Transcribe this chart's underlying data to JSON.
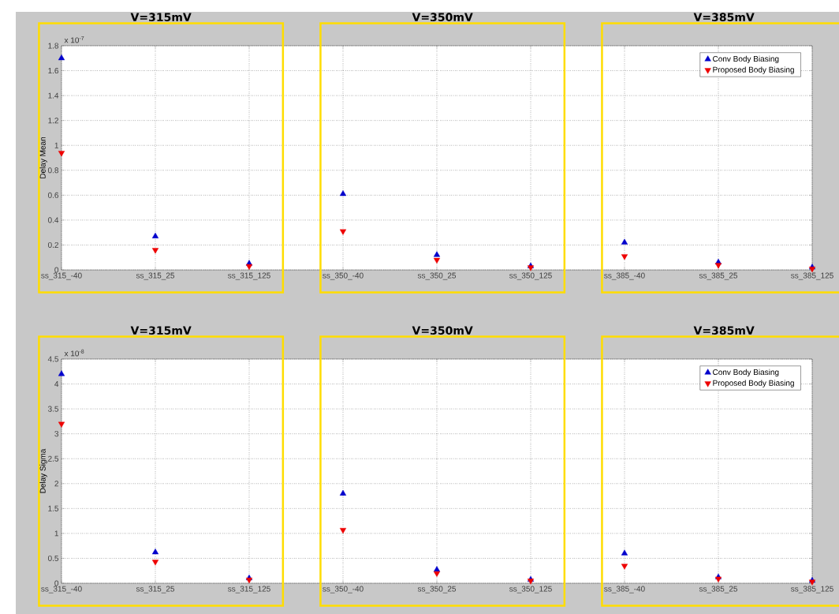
{
  "chart_data": [
    {
      "type": "scatter",
      "ylabel": "Delay Mean",
      "marker": "triangle",
      "grid": true,
      "legend": "top right",
      "categories": [
        "ss_315_-40",
        "ss_315_25",
        "ss_315_125",
        "ss_350_-40",
        "ss_350_25",
        "ss_350_125",
        "ss_385_-40",
        "ss_385_25",
        "ss_385_125"
      ],
      "series": [
        {
          "name": "Conv Body Biasing",
          "color": "#0000cc",
          "values": [
            1.7,
            0.27,
            0.05,
            0.61,
            0.12,
            0.03,
            0.22,
            0.06,
            0.02
          ]
        },
        {
          "name": "Proposed Body Biasing",
          "color": "#ee0000",
          "values": [
            0.94,
            0.16,
            0.03,
            0.31,
            0.08,
            0.02,
            0.11,
            0.04,
            0.01
          ]
        }
      ],
      "ylim": [
        0,
        1.8
      ],
      "yticks": [
        0,
        0.2,
        0.4,
        0.6,
        0.8,
        1,
        1.2,
        1.4,
        1.6,
        1.8
      ],
      "annotations": [
        "x 10$^{-7}$",
        "V=315mV",
        "V=350mV",
        "V=385mV"
      ]
    },
    {
      "type": "scatter",
      "ylabel": "Delay Sigma",
      "marker": "triangle",
      "grid": true,
      "legend": "top right",
      "categories": [
        "ss_315_-40",
        "ss_315_25",
        "ss_315_125",
        "ss_350_-40",
        "ss_350_25",
        "ss_350_125",
        "ss_385_-40",
        "ss_385_25",
        "ss_385_125"
      ],
      "series": [
        {
          "name": "Conv Body Biasing",
          "color": "#0000cc",
          "values": [
            4.2,
            0.62,
            0.1,
            1.8,
            0.27,
            0.07,
            0.6,
            0.12,
            0.05
          ]
        },
        {
          "name": "Proposed Body Biasing",
          "color": "#ee0000",
          "values": [
            3.2,
            0.43,
            0.07,
            1.07,
            0.2,
            0.05,
            0.35,
            0.09,
            0.03
          ]
        }
      ],
      "ylim": [
        0,
        4.5
      ],
      "yticks": [
        0,
        0.5,
        1,
        1.5,
        2,
        2.5,
        3,
        3.5,
        4,
        4.5
      ],
      "annotations": [
        "x 10$^{-8}$",
        "V=315mV",
        "V=350mV",
        "V=385mV"
      ]
    }
  ]
}
